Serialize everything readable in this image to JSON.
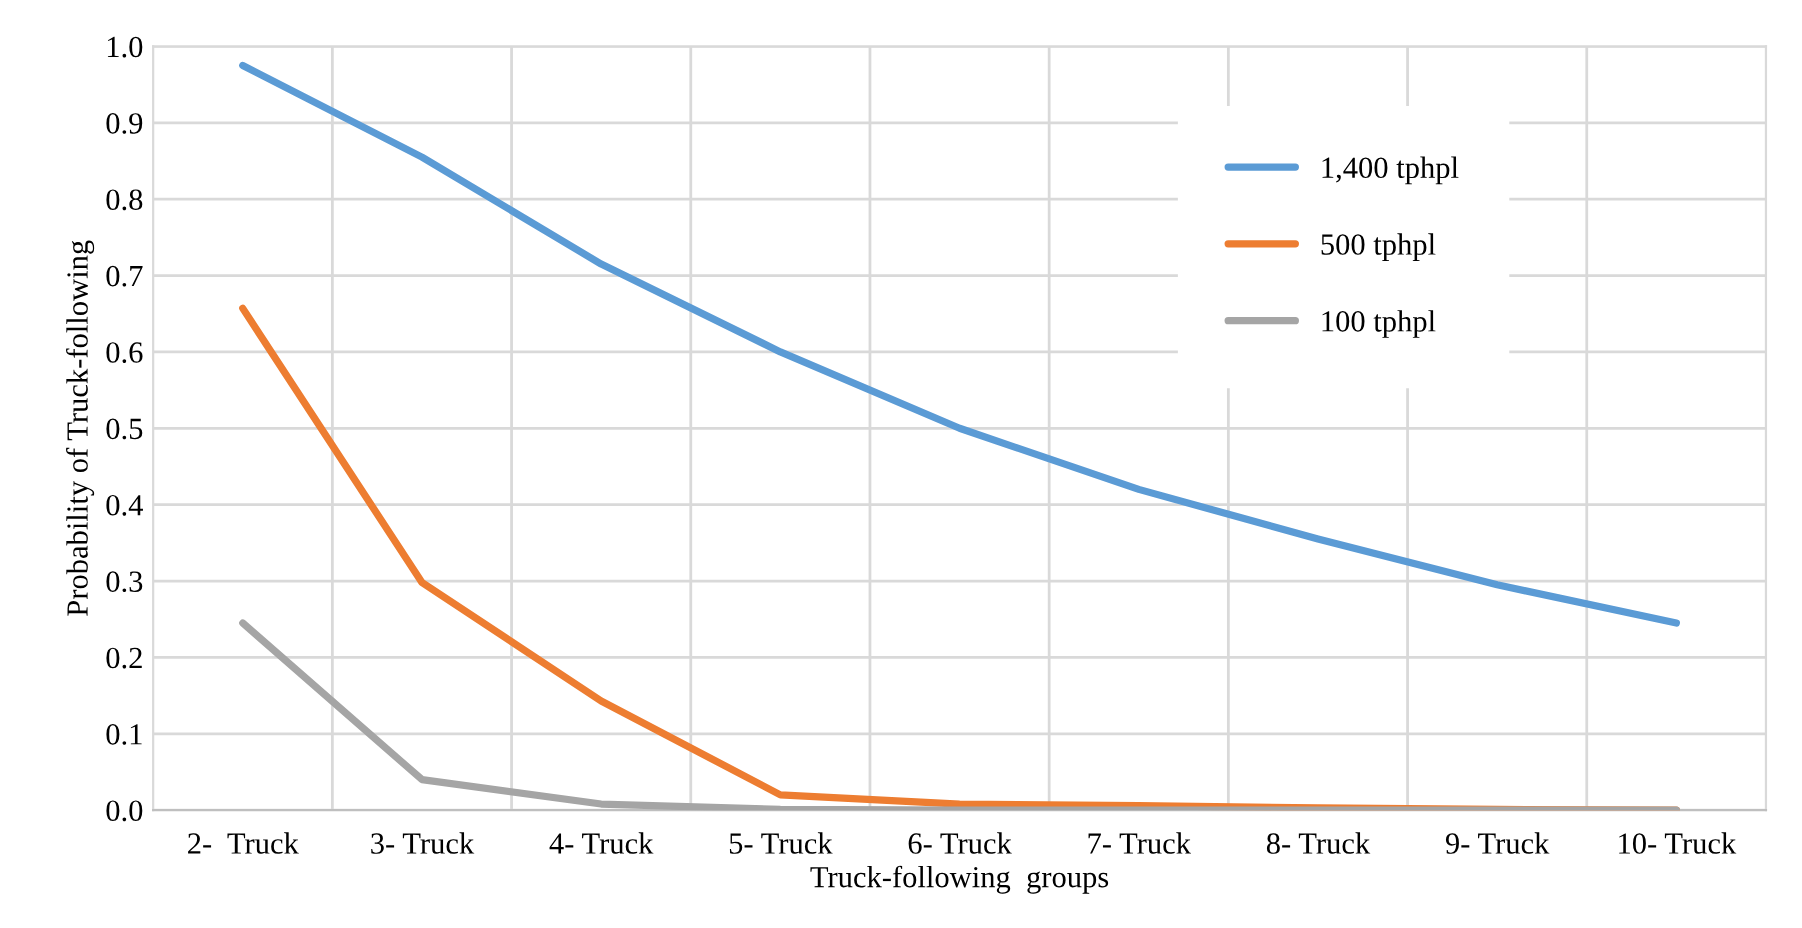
{
  "chart_data": {
    "type": "line",
    "xlabel": "Truck-following  groups",
    "ylabel": "Probability of Truck-following",
    "categories": [
      "2-  Truck",
      "3- Truck",
      "4- Truck",
      "5- Truck",
      "6- Truck",
      "7- Truck",
      "8- Truck",
      "9- Truck",
      "10- Truck"
    ],
    "series": [
      {
        "name": "1,400 tphpl",
        "color": "#5b9bd5",
        "values": [
          0.975,
          0.855,
          0.715,
          0.6,
          0.5,
          0.42,
          0.355,
          0.295,
          0.245
        ]
      },
      {
        "name": "500 tphpl",
        "color": "#ed7d31",
        "values": [
          0.657,
          0.298,
          0.143,
          0.02,
          0.008,
          0.006,
          0.003,
          0.001,
          0.0
        ]
      },
      {
        "name": "100 tphpl",
        "color": "#a5a5a5",
        "values": [
          0.245,
          0.04,
          0.008,
          0.001,
          0.0,
          0.0,
          0.0,
          0.0,
          0.0
        ]
      }
    ],
    "ylim": [
      0,
      1.0
    ],
    "yticks": [
      {
        "value": 0,
        "label": "0.0"
      },
      0.1,
      0.2,
      0.3,
      0.4,
      0.5,
      0.6,
      0.7,
      0.8,
      0.9,
      {
        "value": 1.0,
        "label": "1.0"
      }
    ],
    "grid": true,
    "legend": "top right",
    "marker": "none",
    "line_style": "solid"
  }
}
